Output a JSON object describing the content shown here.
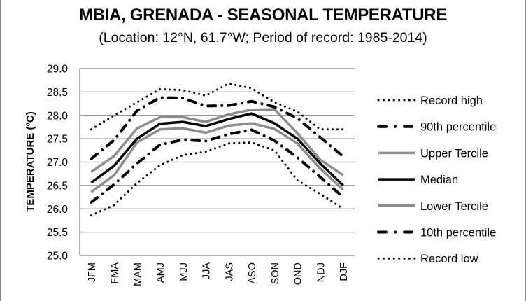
{
  "chart_data": {
    "type": "line",
    "title": "MBIA, GRENADA - SEASONAL TEMPERATURE",
    "subtitle": "(Location: 12°N, 61.7°W; Period of record: 1985-2014)",
    "xlabel": "",
    "ylabel": "TEMPERATURE (ºC)",
    "ylim": [
      25.0,
      29.0
    ],
    "yticks": [
      "25.0",
      "25.5",
      "26.0",
      "26.5",
      "27.0",
      "27.5",
      "28.0",
      "28.5",
      "29.0"
    ],
    "ytick_values": [
      25.0,
      25.5,
      26.0,
      26.5,
      27.0,
      27.5,
      28.0,
      28.5,
      29.0
    ],
    "grid": true,
    "legend_position": "right",
    "categories": [
      "JFM",
      "FMA",
      "MAM",
      "AMJ",
      "MJJ",
      "JJA",
      "JAS",
      "ASO",
      "SON",
      "OND",
      "NDJ",
      "DJF"
    ],
    "series": [
      {
        "name": "Record high",
        "style": "dotted",
        "color": "#000000",
        "values": [
          27.7,
          28.0,
          28.28,
          28.56,
          28.54,
          28.42,
          28.68,
          28.58,
          28.28,
          28.08,
          27.7,
          27.7
        ]
      },
      {
        "name": "90th percentile",
        "style": "dash-dot",
        "color": "#000000",
        "values": [
          27.07,
          27.47,
          28.1,
          28.38,
          28.37,
          28.2,
          28.21,
          28.3,
          28.18,
          27.94,
          27.53,
          27.12
        ]
      },
      {
        "name": "Upper Tercile",
        "style": "solid",
        "color": "#8c8c8c",
        "values": [
          26.79,
          27.13,
          27.72,
          27.96,
          27.96,
          27.86,
          28.02,
          28.12,
          28.13,
          27.62,
          27.05,
          26.72
        ]
      },
      {
        "name": "Median",
        "style": "solid",
        "color": "#000000",
        "values": [
          26.56,
          26.92,
          27.5,
          27.82,
          27.86,
          27.77,
          27.92,
          28.04,
          27.83,
          27.5,
          26.97,
          26.5
        ]
      },
      {
        "name": "Lower Tercile",
        "style": "solid",
        "color": "#8c8c8c",
        "values": [
          26.36,
          26.72,
          27.42,
          27.7,
          27.72,
          27.63,
          27.78,
          27.83,
          27.71,
          27.4,
          26.86,
          26.41
        ]
      },
      {
        "name": "10th percentile",
        "style": "dash-dot",
        "color": "#000000",
        "values": [
          26.14,
          26.52,
          26.97,
          27.37,
          27.48,
          27.45,
          27.6,
          27.69,
          27.46,
          27.1,
          26.68,
          26.25
        ]
      },
      {
        "name": "Record low",
        "style": "dotted",
        "color": "#000000",
        "values": [
          25.86,
          26.08,
          26.55,
          26.93,
          27.15,
          27.22,
          27.4,
          27.42,
          27.25,
          26.61,
          26.32,
          26.0
        ]
      }
    ]
  }
}
